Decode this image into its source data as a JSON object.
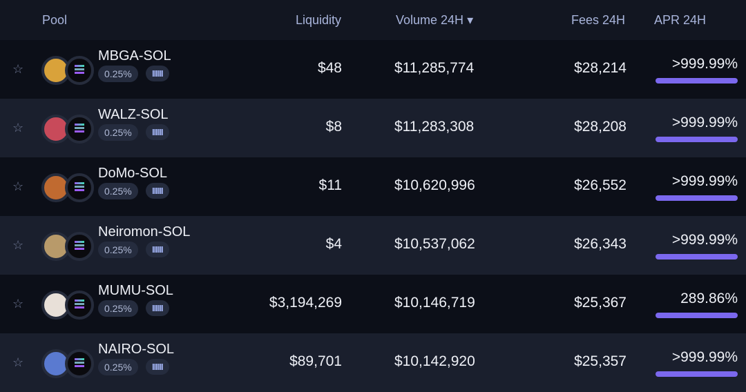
{
  "header": {
    "pool": "Pool",
    "liquidity": "Liquidity",
    "volume": "Volume 24H",
    "sort_icon": "▾",
    "fees": "Fees 24H",
    "apr": "APR 24H"
  },
  "rows": [
    {
      "name": "MBGA-SOL",
      "fee": "0.25%",
      "tag": "IIIIII",
      "liquidity": "$48",
      "volume": "$11,285,774",
      "fees": "$28,214",
      "apr": ">999.99%",
      "color": "#d9a23a"
    },
    {
      "name": "WALZ-SOL",
      "fee": "0.25%",
      "tag": "IIIIII",
      "liquidity": "$8",
      "volume": "$11,283,308",
      "fees": "$28,208",
      "apr": ">999.99%",
      "color": "#c84a5a"
    },
    {
      "name": "DoMo-SOL",
      "fee": "0.25%",
      "tag": "IIIIII",
      "liquidity": "$11",
      "volume": "$10,620,996",
      "fees": "$26,552",
      "apr": ">999.99%",
      "color": "#c06a30"
    },
    {
      "name": "Neiromon-SOL",
      "fee": "0.25%",
      "tag": "IIIIII",
      "liquidity": "$4",
      "volume": "$10,537,062",
      "fees": "$26,343",
      "apr": ">999.99%",
      "color": "#b89a6a"
    },
    {
      "name": "MUMU-SOL",
      "fee": "0.25%",
      "tag": "IIIIII",
      "liquidity": "$3,194,269",
      "volume": "$10,146,719",
      "fees": "$25,367",
      "apr": "289.86%",
      "color": "#e8e0d8"
    },
    {
      "name": "NAIRO-SOL",
      "fee": "0.25%",
      "tag": "IIIIII",
      "liquidity": "$89,701",
      "volume": "$10,142,920",
      "fees": "$25,357",
      "apr": ">999.99%",
      "color": "#5a7ad0"
    }
  ]
}
